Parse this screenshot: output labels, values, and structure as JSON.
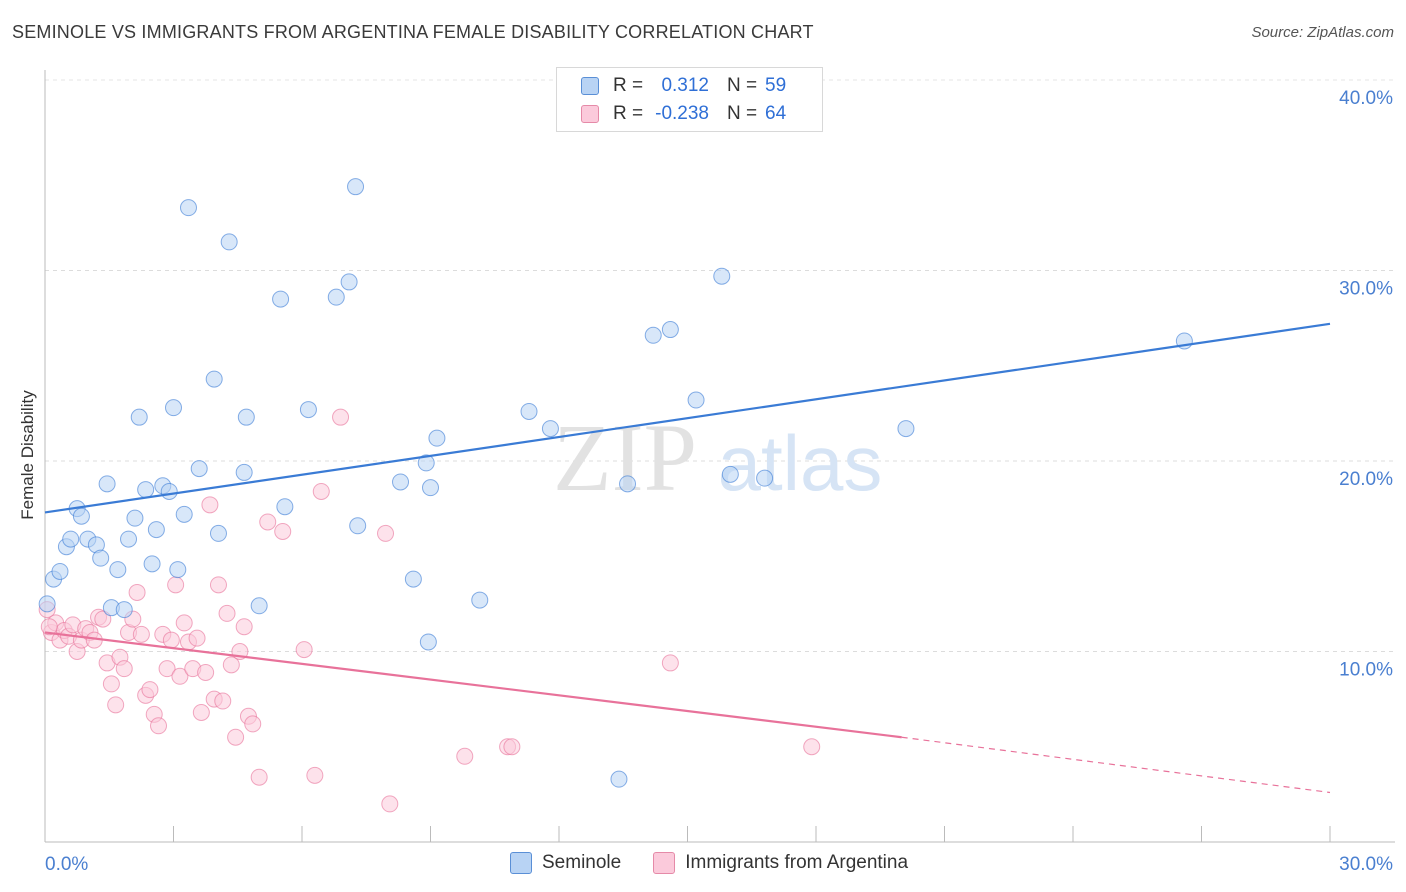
{
  "title": "SEMINOLE VS IMMIGRANTS FROM ARGENTINA FEMALE DISABILITY CORRELATION CHART",
  "source": "Source: ZipAtlas.com",
  "watermark": {
    "zip": "ZIP",
    "atlas": "atlas"
  },
  "legend": {
    "rows": [
      {
        "r_label": "R =",
        "r_value": "0.312",
        "n_label": "N =",
        "n_value": "59"
      },
      {
        "r_label": "R =",
        "r_value": "-0.238",
        "n_label": "N =",
        "n_value": "64"
      }
    ]
  },
  "bottom_legend": {
    "seminole": "Seminole",
    "argentina": "Immigrants from Argentina"
  },
  "colors": {
    "blue": "#3a7bd5",
    "blue_fill": "#b8d3f4",
    "pink": "#e8729a",
    "pink_fill": "#fbcadb",
    "axis_text": "#4a7fd0"
  },
  "chart_data": {
    "type": "scatter",
    "title": "SEMINOLE VS IMMIGRANTS FROM ARGENTINA FEMALE DISABILITY CORRELATION CHART",
    "xlabel": "",
    "ylabel": "Female Disability",
    "xlim": [
      0,
      30
    ],
    "ylim": [
      0,
      40
    ],
    "x_tick_labels": [
      "0.0%",
      "30.0%"
    ],
    "y_tick_labels": [
      "10.0%",
      "20.0%",
      "30.0%",
      "40.0%"
    ],
    "y_ticks": [
      10,
      20,
      30,
      40
    ],
    "series": [
      {
        "name": "Seminole",
        "R": 0.312,
        "N": 59,
        "trend": {
          "x0": 0,
          "y0": 17.3,
          "x1": 30,
          "y1": 27.2
        },
        "points": [
          [
            0.05,
            12.5
          ],
          [
            0.2,
            13.8
          ],
          [
            0.35,
            14.2
          ],
          [
            0.5,
            15.5
          ],
          [
            0.6,
            15.9
          ],
          [
            0.75,
            17.5
          ],
          [
            0.85,
            17.1
          ],
          [
            1.0,
            15.9
          ],
          [
            1.2,
            15.6
          ],
          [
            1.3,
            14.9
          ],
          [
            1.45,
            18.8
          ],
          [
            1.55,
            12.3
          ],
          [
            1.7,
            14.3
          ],
          [
            1.85,
            12.2
          ],
          [
            1.95,
            15.9
          ],
          [
            2.1,
            17.0
          ],
          [
            2.2,
            22.3
          ],
          [
            2.35,
            18.5
          ],
          [
            2.5,
            14.6
          ],
          [
            2.6,
            16.4
          ],
          [
            2.75,
            18.7
          ],
          [
            2.9,
            18.4
          ],
          [
            3.0,
            22.8
          ],
          [
            3.1,
            14.3
          ],
          [
            3.25,
            17.2
          ],
          [
            3.35,
            33.3
          ],
          [
            3.6,
            19.6
          ],
          [
            3.95,
            24.3
          ],
          [
            4.05,
            16.2
          ],
          [
            4.3,
            31.5
          ],
          [
            4.65,
            19.4
          ],
          [
            5.0,
            12.4
          ],
          [
            4.7,
            22.3
          ],
          [
            5.5,
            28.5
          ],
          [
            5.6,
            17.6
          ],
          [
            6.15,
            22.7
          ],
          [
            6.8,
            28.6
          ],
          [
            7.1,
            29.4
          ],
          [
            7.25,
            34.4
          ],
          [
            7.3,
            16.6
          ],
          [
            8.3,
            18.9
          ],
          [
            8.9,
            19.9
          ],
          [
            8.6,
            13.8
          ],
          [
            8.95,
            10.5
          ],
          [
            9.0,
            18.6
          ],
          [
            9.15,
            21.2
          ],
          [
            10.15,
            12.7
          ],
          [
            11.3,
            22.6
          ],
          [
            11.8,
            21.7
          ],
          [
            13.4,
            3.3
          ],
          [
            13.6,
            18.8
          ],
          [
            14.2,
            26.6
          ],
          [
            14.6,
            26.9
          ],
          [
            15.2,
            23.2
          ],
          [
            15.8,
            29.7
          ],
          [
            16.0,
            19.3
          ],
          [
            16.8,
            19.1
          ],
          [
            20.1,
            21.7
          ],
          [
            26.6,
            26.3
          ]
        ]
      },
      {
        "name": "Immigrants from Argentina",
        "R": -0.238,
        "N": 64,
        "trend": {
          "x0": 0,
          "y0": 11.0,
          "x1": 20.0,
          "y1": 5.5,
          "dash_to_x": 30,
          "dash_to_y": 2.6
        },
        "points": [
          [
            0.05,
            12.2
          ],
          [
            0.15,
            11.0
          ],
          [
            0.25,
            11.5
          ],
          [
            0.35,
            10.6
          ],
          [
            0.45,
            11.1
          ],
          [
            0.55,
            10.8
          ],
          [
            0.65,
            11.4
          ],
          [
            0.75,
            10.0
          ],
          [
            0.85,
            10.6
          ],
          [
            0.95,
            11.2
          ],
          [
            1.05,
            11.0
          ],
          [
            1.15,
            10.6
          ],
          [
            1.25,
            11.8
          ],
          [
            1.35,
            11.7
          ],
          [
            1.45,
            9.4
          ],
          [
            1.55,
            8.3
          ],
          [
            1.65,
            7.2
          ],
          [
            1.75,
            9.7
          ],
          [
            1.85,
            9.1
          ],
          [
            1.95,
            11.0
          ],
          [
            2.05,
            11.7
          ],
          [
            2.15,
            13.1
          ],
          [
            2.25,
            10.9
          ],
          [
            2.35,
            7.7
          ],
          [
            2.45,
            8.0
          ],
          [
            2.55,
            6.7
          ],
          [
            2.65,
            6.1
          ],
          [
            2.75,
            10.9
          ],
          [
            2.85,
            9.1
          ],
          [
            2.95,
            10.6
          ],
          [
            3.05,
            13.5
          ],
          [
            3.15,
            8.7
          ],
          [
            3.25,
            11.5
          ],
          [
            3.35,
            10.5
          ],
          [
            3.45,
            9.1
          ],
          [
            3.55,
            10.7
          ],
          [
            3.65,
            6.8
          ],
          [
            3.75,
            8.9
          ],
          [
            3.85,
            17.7
          ],
          [
            3.95,
            7.5
          ],
          [
            4.05,
            13.5
          ],
          [
            4.15,
            7.4
          ],
          [
            4.25,
            12.0
          ],
          [
            4.35,
            9.3
          ],
          [
            4.45,
            5.5
          ],
          [
            4.55,
            10.0
          ],
          [
            4.65,
            11.3
          ],
          [
            4.75,
            6.6
          ],
          [
            4.85,
            6.2
          ],
          [
            5.0,
            3.4
          ],
          [
            5.2,
            16.8
          ],
          [
            5.55,
            16.3
          ],
          [
            6.05,
            10.1
          ],
          [
            6.3,
            3.5
          ],
          [
            6.45,
            18.4
          ],
          [
            6.9,
            22.3
          ],
          [
            7.95,
            16.2
          ],
          [
            8.05,
            2.0
          ],
          [
            9.8,
            4.5
          ],
          [
            10.8,
            5.0
          ],
          [
            10.9,
            5.0
          ],
          [
            14.6,
            9.4
          ],
          [
            17.9,
            5.0
          ],
          [
            0.1,
            11.3
          ]
        ]
      }
    ]
  }
}
